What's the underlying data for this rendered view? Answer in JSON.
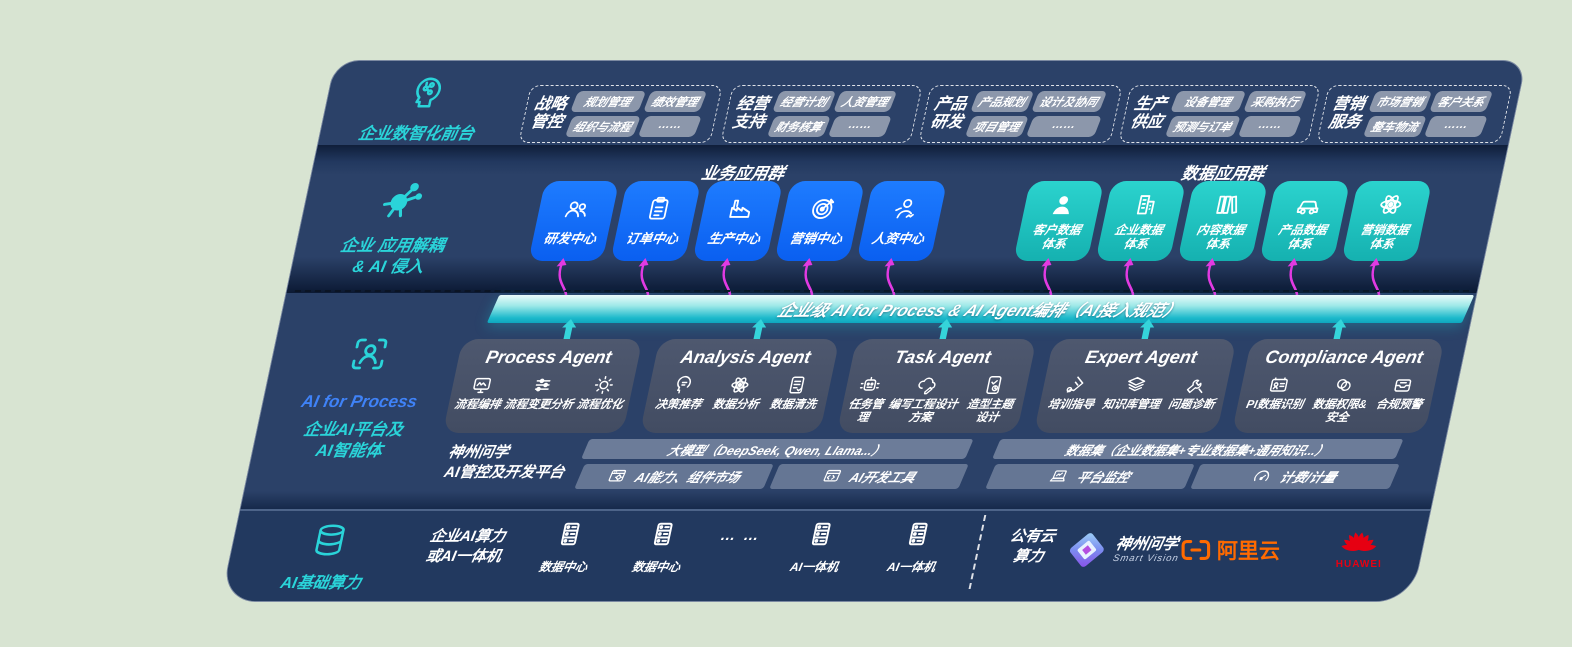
{
  "colors": {
    "panel_navy": "#2B4168",
    "infra_navy": "#22395F",
    "teal_accent": "#2AD4D9",
    "rail_blue": "#3F82F7",
    "box_blue": "#1470FA",
    "box_teal": "#23CCC8",
    "band_teal": "#12B4C8",
    "magenta_arrow": "#E23AE2",
    "pill_gray": "#9AA3B4",
    "agent_gray": "#4A5469",
    "alibaba_orange": "#FF6A00",
    "huawei_red": "#E60012"
  },
  "front": {
    "label": "企业数智化前台",
    "icon": "brain-icon",
    "groups": [
      {
        "label": "战略\n管控",
        "pills": [
          "规划管理",
          "绩效管理",
          "组织与流程",
          "……"
        ]
      },
      {
        "label": "经营\n支持",
        "pills": [
          "经营计划",
          "人资管理",
          "财务核算",
          "……"
        ]
      },
      {
        "label": "产品\n研发",
        "pills": [
          "产品规划",
          "设计及协同",
          "项目管理",
          "……"
        ]
      },
      {
        "label": "生产\n供应",
        "pills": [
          "设备管理",
          "采购执行",
          "预测与订单",
          "……"
        ]
      },
      {
        "label": "营销\n服务",
        "pills": [
          "市场营销",
          "客户关系",
          "整车物流",
          "……"
        ]
      }
    ]
  },
  "apps": {
    "rail_label": "企业 应用解耦\n& AI 侵入",
    "rail_icon": "molecule-icon",
    "business_title": "业务应用群",
    "data_title": "数据应用群",
    "business_boxes": [
      {
        "label": "研发中心",
        "icon": "team-icon"
      },
      {
        "label": "订单中心",
        "icon": "clipboard-icon"
      },
      {
        "label": "生产中心",
        "icon": "factory-icon"
      },
      {
        "label": "营销中心",
        "icon": "target-icon"
      },
      {
        "label": "人资中心",
        "icon": "hr-icon"
      }
    ],
    "data_boxes": [
      {
        "label": "客户数据\n体系",
        "icon": "customer-icon"
      },
      {
        "label": "企业数据\n体系",
        "icon": "building-icon"
      },
      {
        "label": "内容数据\n体系",
        "icon": "content-icon"
      },
      {
        "label": "产品数据\n体系",
        "icon": "car-icon"
      },
      {
        "label": "营销数据\n体系",
        "icon": "network-icon"
      }
    ]
  },
  "band": {
    "label": "企业级 AI for Process & AI Agent编排（AI接入规范）"
  },
  "platform": {
    "rail_en": "AI for Process",
    "rail_label": "企业AI平台及\nAI智能体",
    "rail_icon": "scan-person-icon",
    "agents": [
      {
        "title": "Process Agent",
        "items": [
          {
            "label": "流程编排",
            "icon": "monitor-wave-icon"
          },
          {
            "label": "流程变更分析",
            "icon": "sliders-icon"
          },
          {
            "label": "流程优化",
            "icon": "optimize-icon"
          }
        ]
      },
      {
        "title": "Analysis Agent",
        "items": [
          {
            "label": "决策推荐",
            "icon": "decision-icon"
          },
          {
            "label": "数据分析",
            "icon": "network-icon"
          },
          {
            "label": "数据清洗",
            "icon": "doc-clean-icon"
          }
        ]
      },
      {
        "title": "Task Agent",
        "items": [
          {
            "label": "任务管理",
            "icon": "task-bot-icon"
          },
          {
            "label": "编写工程设计方案",
            "icon": "cloud-pen-icon"
          },
          {
            "label": "造型主题设计",
            "icon": "design-check-icon"
          }
        ]
      },
      {
        "title": "Expert Agent",
        "items": [
          {
            "label": "培训指导",
            "icon": "training-icon"
          },
          {
            "label": "知识库管理",
            "icon": "knowledge-layers-icon"
          },
          {
            "label": "问题诊断",
            "icon": "diagnose-icon"
          }
        ]
      },
      {
        "title": "Compliance Agent",
        "items": [
          {
            "label": "PI数据识别",
            "icon": "id-card-icon"
          },
          {
            "label": "数据权限&\n安全",
            "icon": "permission-rings-icon"
          },
          {
            "label": "合规预警",
            "icon": "alert-tray-icon"
          }
        ]
      }
    ],
    "devplat": {
      "label": "神州问学\nAI管控及开发平台",
      "model_bar": "大模型（DeepSeek, Qwen, Llama...）",
      "dataset_bar": "数据集（企业数据集+专业数据集+通用知识...）",
      "tool_bars": [
        {
          "label": "AI能力、组件市场",
          "icon": "app-market-icon"
        },
        {
          "label": "AI开发工具",
          "icon": "dev-tools-icon"
        }
      ],
      "ops_bars": [
        {
          "label": "平台监控",
          "icon": "monitor-laptop-icon"
        },
        {
          "label": "计费/计量",
          "icon": "meter-gauge-icon"
        }
      ]
    }
  },
  "infra": {
    "rail_label": "AI基础算力",
    "rail_icon": "database-icon",
    "compute_label": "企业AI算力\n或AI一体机",
    "nodes": [
      {
        "label": "数据中心",
        "icon": "server-icon"
      },
      {
        "label": "数据中心",
        "icon": "server-icon"
      },
      {
        "label": "AI一体机",
        "icon": "server-icon"
      },
      {
        "label": "AI一体机",
        "icon": "server-icon"
      }
    ],
    "dots": "… …",
    "cloud_label": "公有云\n算力",
    "vendors": {
      "shenzhou_name": "神州问学",
      "shenzhou_sub": "Smart Vision",
      "shenzhou_icon": "sv-diamond-icon",
      "alibaba": "阿里云",
      "alibaba_icon": "ali-brackets-icon",
      "huawei": "HUAWEI",
      "huawei_icon": "huawei-flower-icon"
    }
  }
}
